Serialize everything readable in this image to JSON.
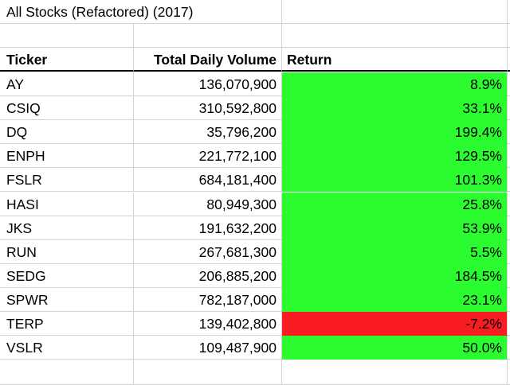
{
  "sheet": {
    "title": "All Stocks (Refactored)  (2017)",
    "headers": {
      "ticker": "Ticker",
      "volume": "Total Daily Volume",
      "return": "Return"
    },
    "rows": [
      {
        "ticker": "AY",
        "volume": "136,070,900",
        "return": "8.9%",
        "status": "positive"
      },
      {
        "ticker": "CSIQ",
        "volume": "310,592,800",
        "return": "33.1%",
        "status": "positive"
      },
      {
        "ticker": "DQ",
        "volume": "35,796,200",
        "return": "199.4%",
        "status": "positive"
      },
      {
        "ticker": "ENPH",
        "volume": "221,772,100",
        "return": "129.5%",
        "status": "positive"
      },
      {
        "ticker": "FSLR",
        "volume": "684,181,400",
        "return": "101.3%",
        "status": "positive"
      },
      {
        "ticker": "HASI",
        "volume": "80,949,300",
        "return": "25.8%",
        "status": "positive"
      },
      {
        "ticker": "JKS",
        "volume": "191,632,200",
        "return": "53.9%",
        "status": "positive"
      },
      {
        "ticker": "RUN",
        "volume": "267,681,300",
        "return": "5.5%",
        "status": "positive"
      },
      {
        "ticker": "SEDG",
        "volume": "206,885,200",
        "return": "184.5%",
        "status": "positive"
      },
      {
        "ticker": "SPWR",
        "volume": "782,187,000",
        "return": "23.1%",
        "status": "positive"
      },
      {
        "ticker": "TERP",
        "volume": "139,402,800",
        "return": "-7.2%",
        "status": "negative"
      },
      {
        "ticker": "VSLR",
        "volume": "109,487,900",
        "return": "50.0%",
        "status": "positive"
      }
    ]
  },
  "colors": {
    "positive_fill": "#2bfc2f",
    "negative_fill": "#fa1c23",
    "gridline": "#d4d4d4"
  }
}
